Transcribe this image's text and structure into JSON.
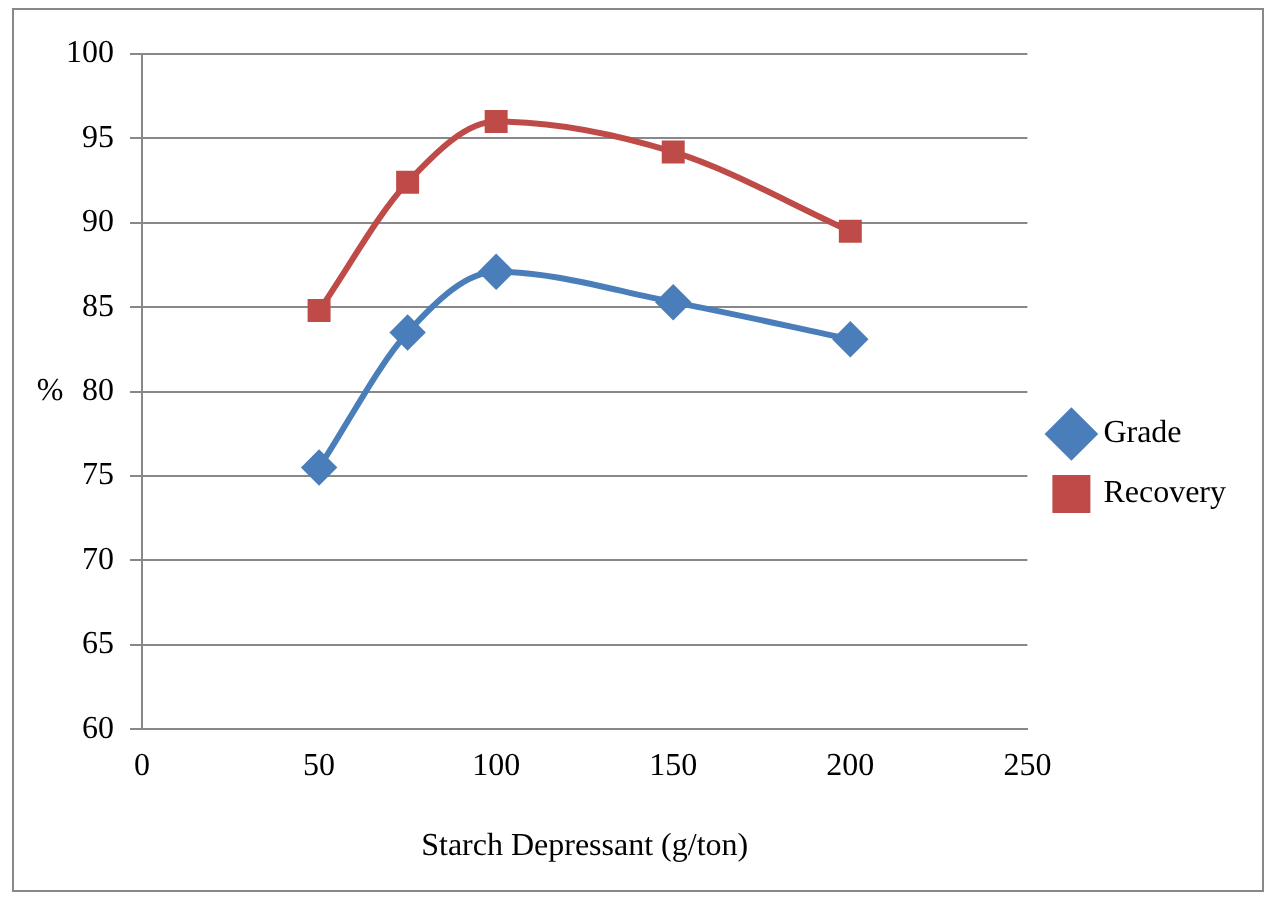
{
  "chart_data": {
    "type": "line",
    "xlabel": "Starch Depressant (g/ton)",
    "ylabel": "%",
    "x": [
      50,
      75,
      100,
      150,
      200
    ],
    "series": [
      {
        "name": "Grade",
        "color": "#4a7ebb",
        "marker": "diamond",
        "values": [
          75.5,
          83.5,
          87.1,
          85.3,
          83.1
        ]
      },
      {
        "name": "Recovery",
        "color": "#be4b48",
        "marker": "square",
        "values": [
          84.8,
          92.4,
          96,
          94.2,
          89.5
        ]
      }
    ],
    "xlim": [
      0,
      250
    ],
    "xticks": [
      0,
      50,
      100,
      150,
      200,
      250
    ],
    "ylim": [
      60,
      100
    ],
    "yticks": [
      60,
      65,
      70,
      75,
      80,
      85,
      90,
      95,
      100
    ],
    "grid": "y",
    "legend": "right"
  }
}
